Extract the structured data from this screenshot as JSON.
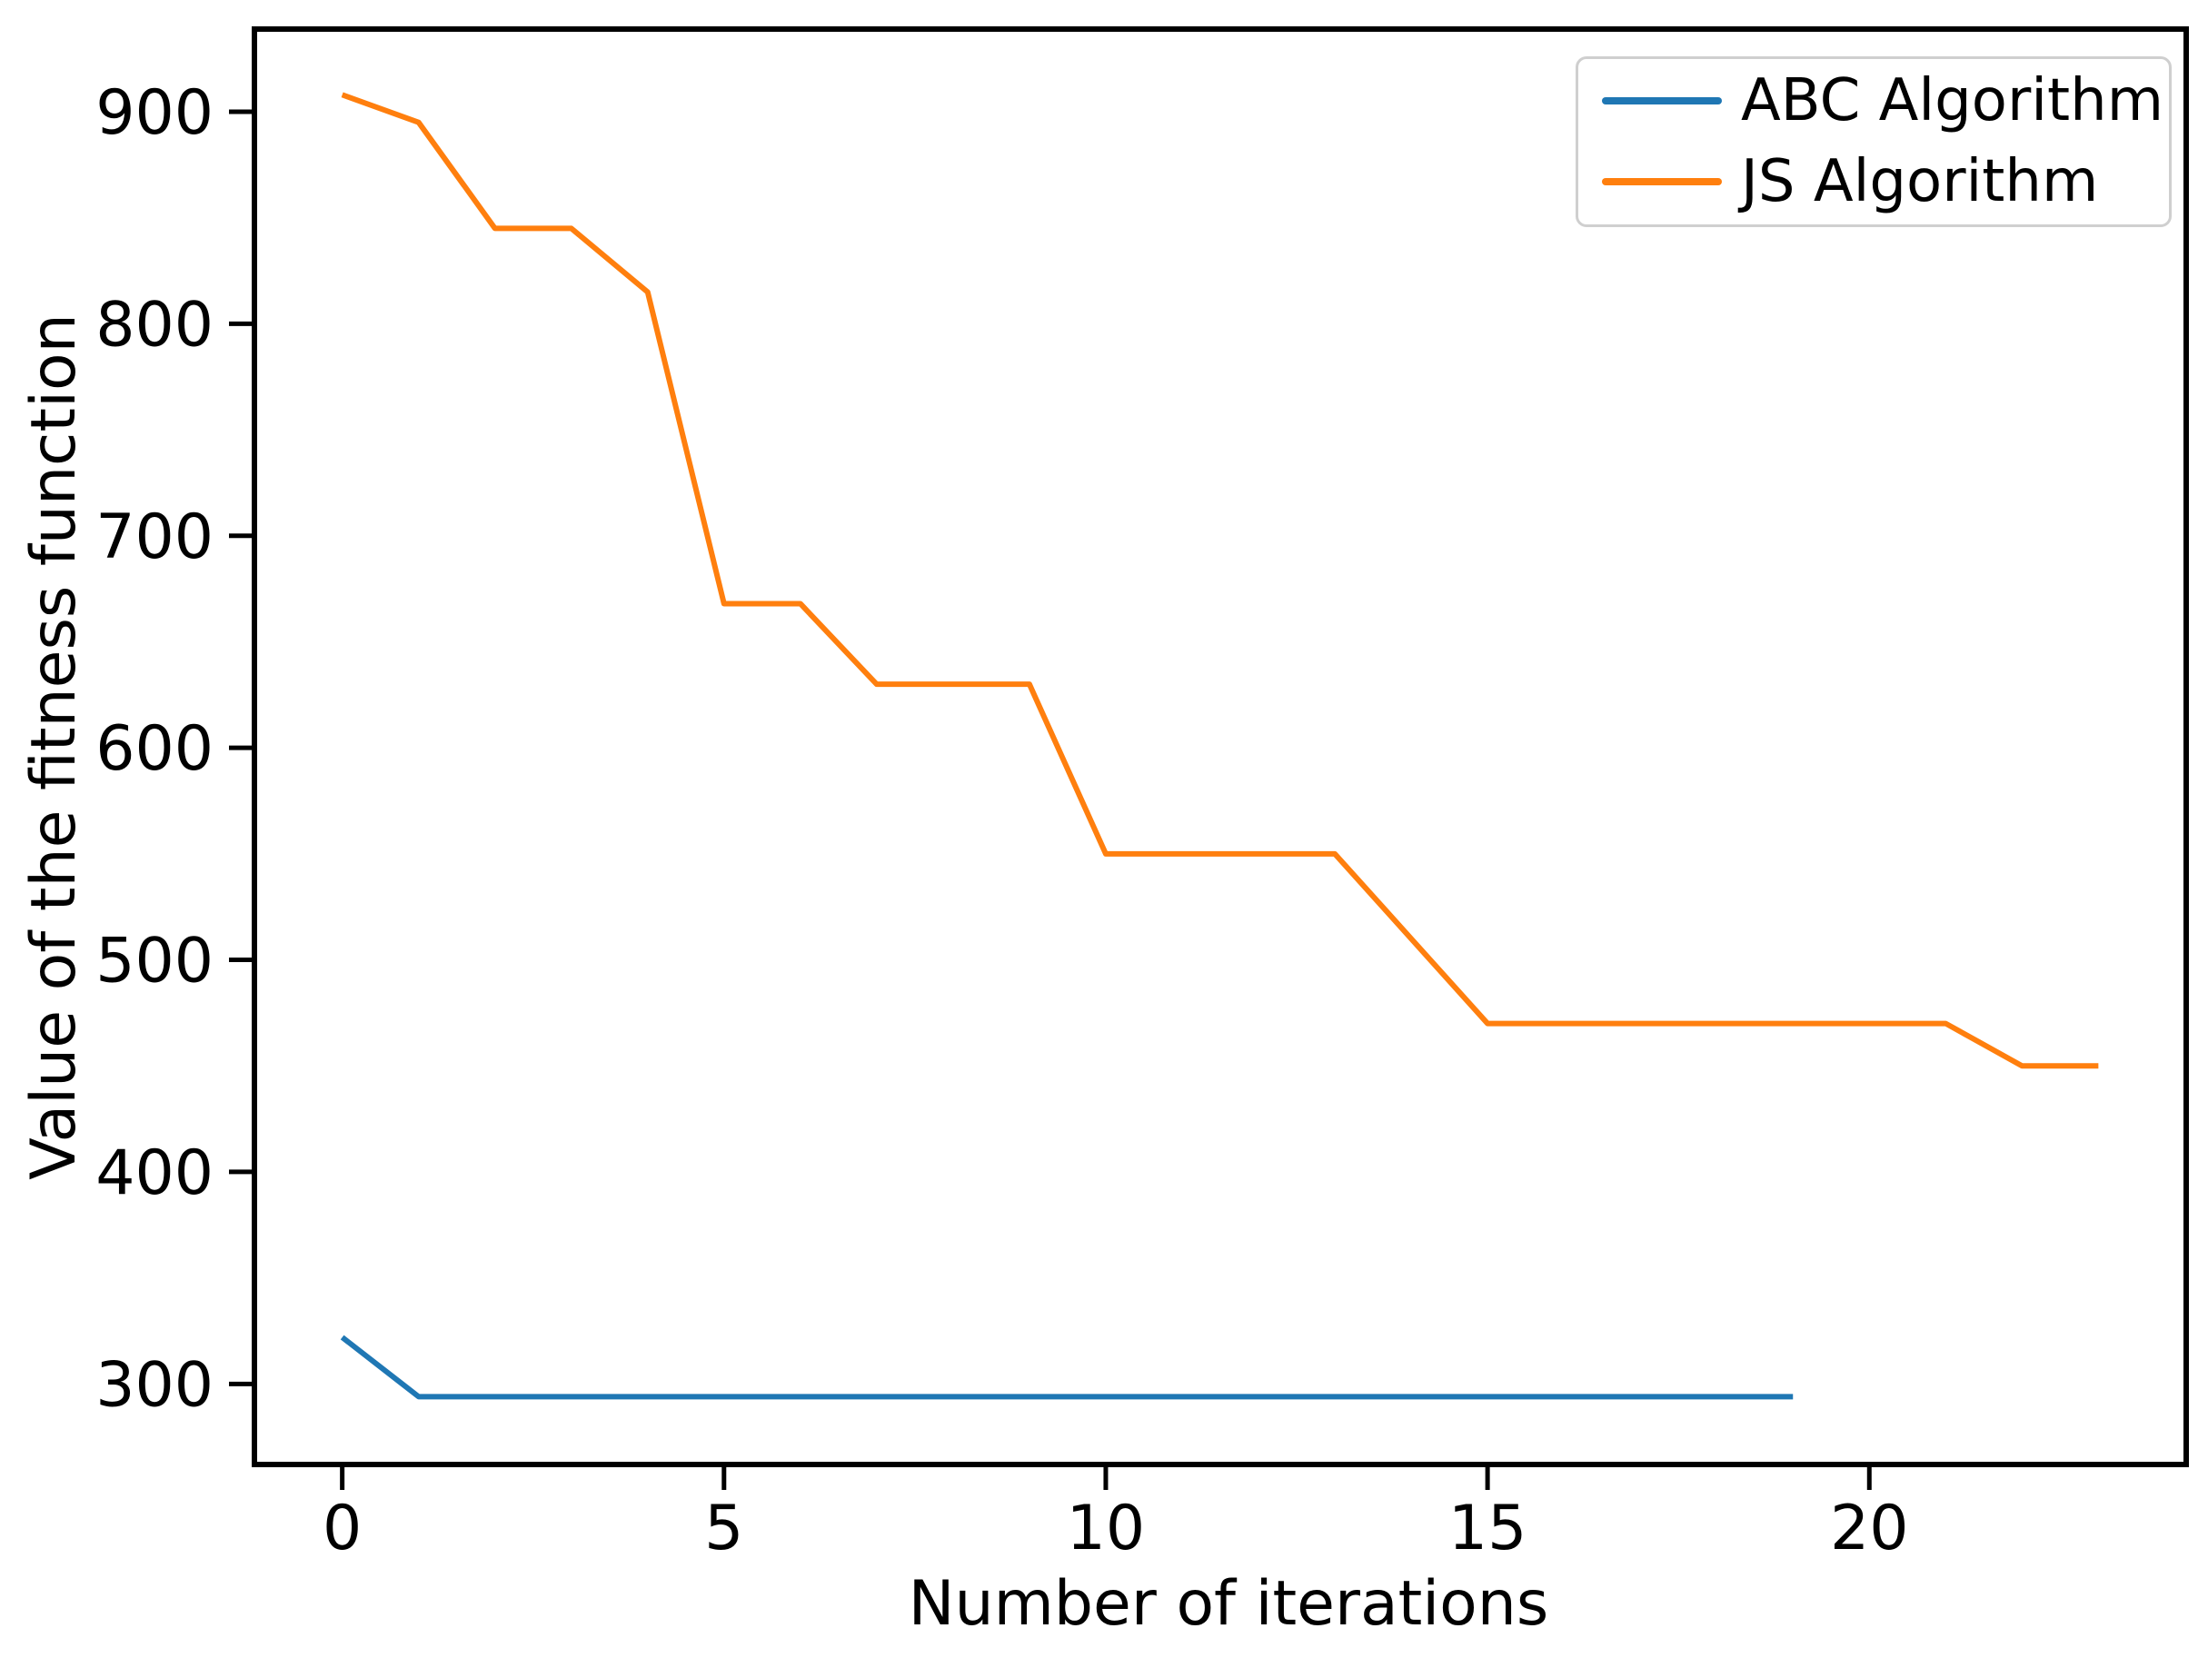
{
  "figure": {
    "background_color": "#ffffff",
    "text_color": "#000000",
    "spine_color": "#000000",
    "legend_border_color": "#cfcfcf"
  },
  "chart_data": {
    "type": "line",
    "title": "",
    "xlabel": "Number of iterations",
    "ylabel": "Value of the fitness function",
    "xlim": [
      -1.15,
      24.15
    ],
    "ylim": [
      262,
      939
    ],
    "x_ticks": [
      0,
      5,
      10,
      15,
      20
    ],
    "y_ticks": [
      300,
      400,
      500,
      600,
      700,
      800,
      900
    ],
    "grid": false,
    "legend": {
      "position": "upper right",
      "entries": [
        {
          "label": "ABC Algorithm",
          "color": "#1f77b4"
        },
        {
          "label": "JS Algorithm",
          "color": "#ff7f0e"
        }
      ]
    },
    "series": [
      {
        "name": "ABC Algorithm",
        "color": "#1f77b4",
        "x": [
          0,
          1,
          2,
          3,
          4,
          5,
          6,
          7,
          8,
          9,
          10,
          11,
          12,
          13,
          14,
          15,
          16,
          17,
          18,
          19
        ],
        "y": [
          322,
          294,
          294,
          294,
          294,
          294,
          294,
          294,
          294,
          294,
          294,
          294,
          294,
          294,
          294,
          294,
          294,
          294,
          294,
          294
        ]
      },
      {
        "name": "JS Algorithm",
        "color": "#ff7f0e",
        "x": [
          0,
          1,
          2,
          3,
          4,
          5,
          6,
          7,
          8,
          9,
          10,
          11,
          12,
          13,
          14,
          15,
          16,
          17,
          18,
          19,
          20,
          21,
          22,
          23
        ],
        "y": [
          908,
          895,
          845,
          845,
          815,
          668,
          668,
          630,
          630,
          630,
          550,
          550,
          550,
          550,
          510,
          470,
          470,
          470,
          470,
          470,
          470,
          470,
          450,
          450
        ]
      }
    ]
  }
}
